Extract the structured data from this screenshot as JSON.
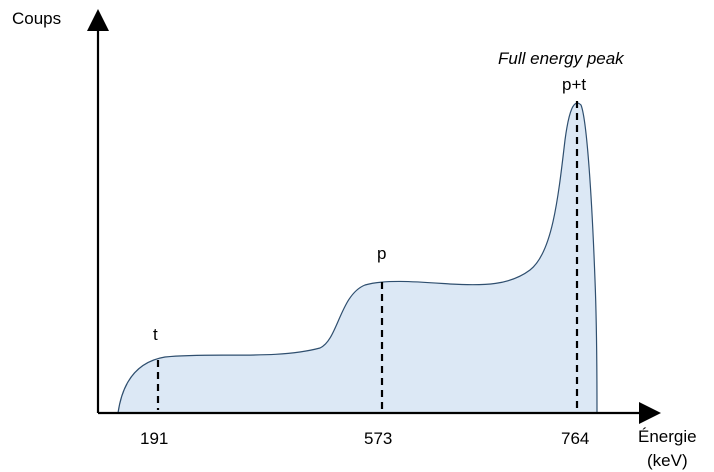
{
  "axes": {
    "y_label": "Coups",
    "x_label_line1": "Énergie",
    "x_label_line2": "(keV)"
  },
  "annotations": {
    "peak_title": "Full energy peak",
    "marker_t": "t",
    "marker_p": "p",
    "marker_pt": "p+t"
  },
  "ticks": {
    "t": "191",
    "p": "573",
    "pt": "764"
  },
  "colors": {
    "fill": "#dce8f5",
    "curve": "#2f4f6f",
    "axis": "#000000"
  }
}
